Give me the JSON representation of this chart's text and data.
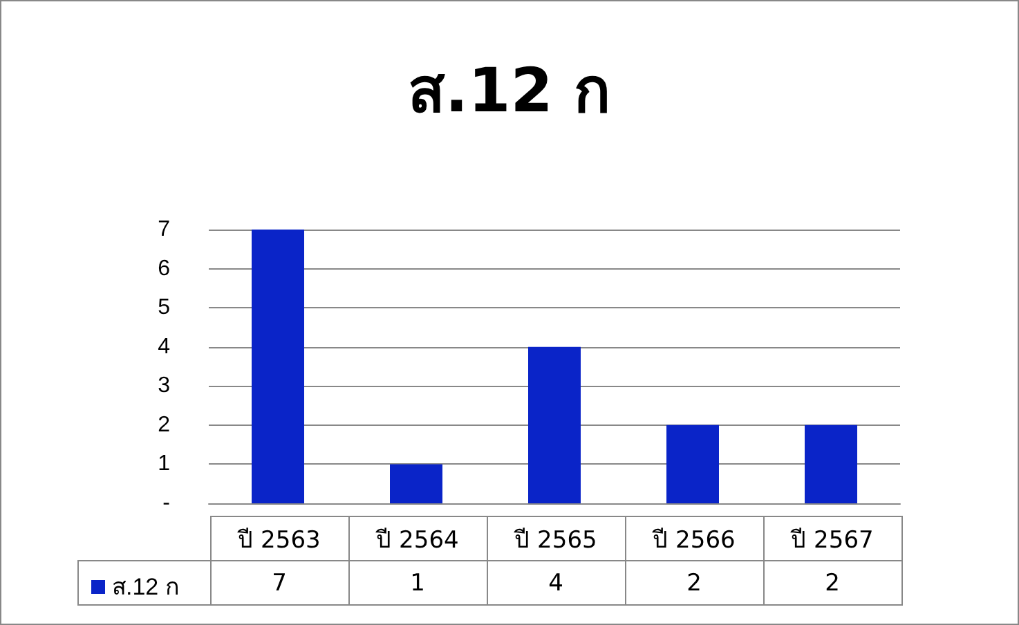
{
  "chart_data": {
    "type": "bar",
    "title": "ส.12 ก",
    "categories": [
      "ปี 2563",
      "ปี 2564",
      "ปี 2565",
      "ปี 2566",
      "ปี 2567"
    ],
    "series": [
      {
        "name": "ส.12 ก",
        "color": "#0a24c8",
        "values": [
          7,
          1,
          4,
          2,
          2
        ]
      }
    ],
    "ylim": [
      0,
      7
    ],
    "yticks": [
      {
        "value": 0,
        "label": "-"
      },
      1,
      2,
      3,
      4,
      5,
      6,
      7
    ],
    "grid": "y",
    "legend": "bottom left",
    "data_labels": true
  }
}
